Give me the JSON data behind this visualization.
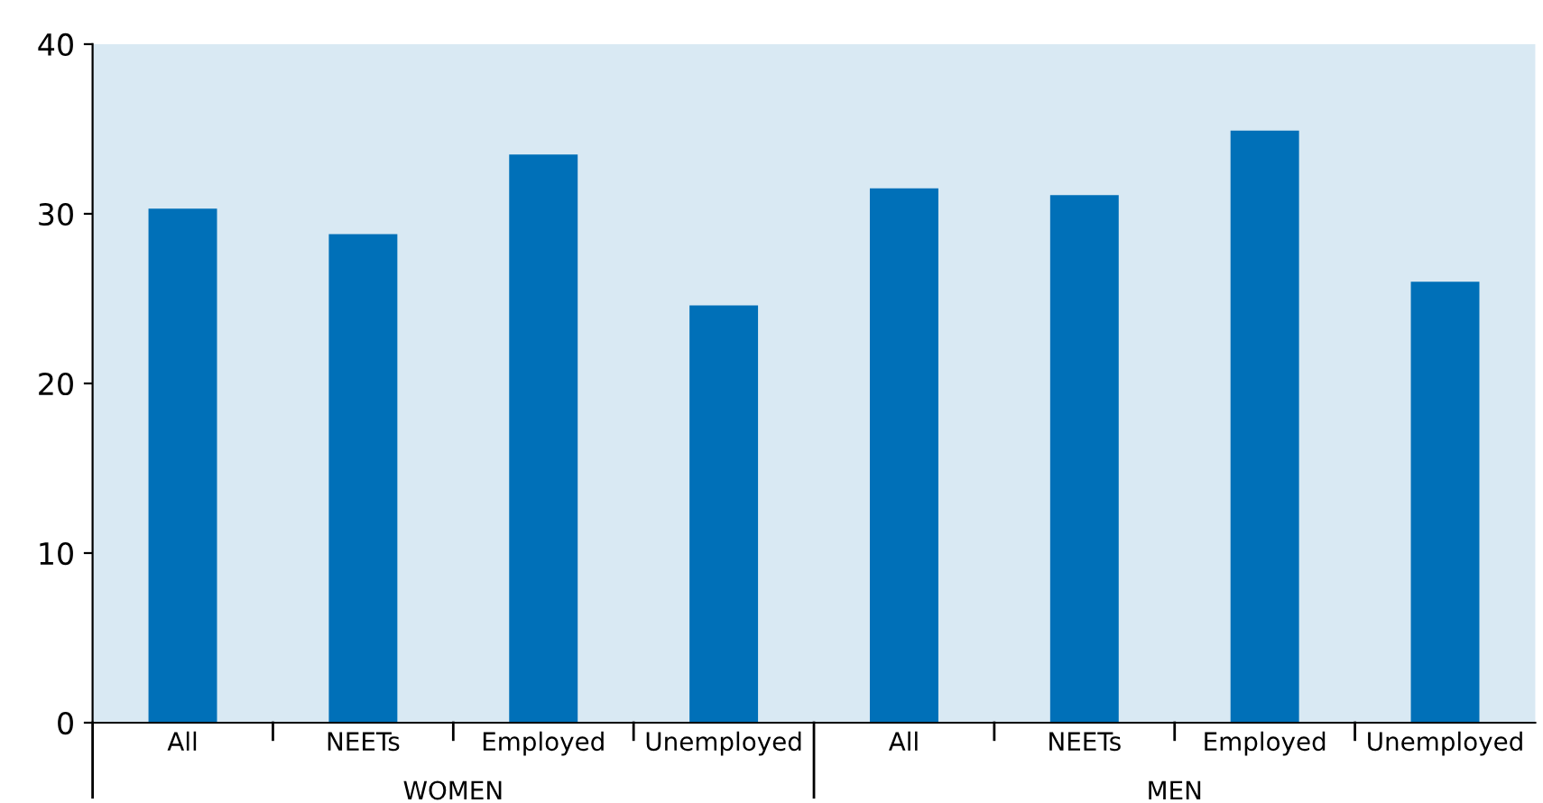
{
  "chart_data": {
    "type": "bar",
    "categories": [
      "All",
      "NEETs",
      "Employed",
      "Unemployed",
      "All",
      "NEETs",
      "Employed",
      "Unemployed"
    ],
    "values": [
      30.3,
      28.8,
      33.5,
      24.6,
      31.5,
      31.1,
      34.9,
      26.0
    ],
    "color": "#0070b8",
    "ylim": [
      0,
      40
    ],
    "yticks": [
      0,
      10,
      20,
      30,
      40
    ],
    "annotations": [
      "WOMEN",
      "MEN"
    ]
  }
}
